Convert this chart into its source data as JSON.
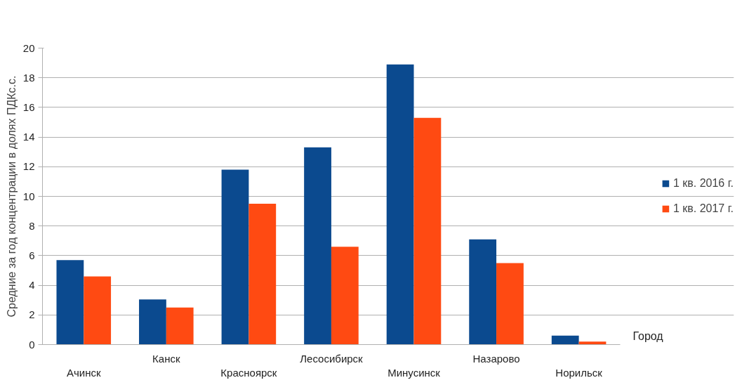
{
  "chart_data": {
    "type": "bar",
    "xlabel": "Город",
    "ylabel": "Средние за год концентрации в долях ПДКс.с.",
    "categories": [
      "Ачинск",
      "Канск",
      "Красноярск",
      "Лесосибирск",
      "Минусинск",
      "Назарово",
      "Норильск"
    ],
    "series": [
      {
        "name": "1 кв. 2016 г.",
        "color": "#0b4a8f",
        "values": [
          5.7,
          3.05,
          11.8,
          13.3,
          18.9,
          7.1,
          0.6
        ]
      },
      {
        "name": "1 кв. 2017 г.",
        "color": "#ff4a12",
        "values": [
          4.6,
          2.5,
          9.5,
          6.6,
          15.3,
          5.5,
          0.2
        ]
      }
    ],
    "ylim": [
      0,
      20
    ],
    "yticks": [
      0,
      2,
      4,
      6,
      8,
      10,
      12,
      14,
      16,
      18,
      20
    ],
    "grid": "y",
    "legend": "right"
  }
}
